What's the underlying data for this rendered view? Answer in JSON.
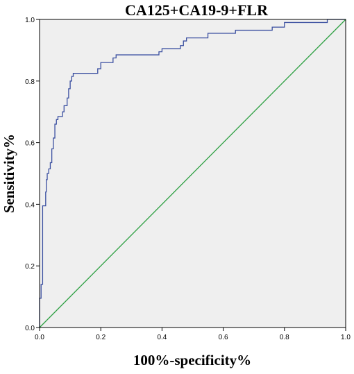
{
  "chart_data": {
    "type": "line",
    "title": "CA125+CA19-9+FLR",
    "xlabel": "100%-specificity%",
    "ylabel": "Sensitivity%",
    "xlim": [
      0.0,
      1.0
    ],
    "ylim": [
      0.0,
      1.0
    ],
    "x_ticks": [
      "0.0",
      "0.2",
      "0.4",
      "0.6",
      "0.8",
      "1.0"
    ],
    "y_ticks": [
      "0.0",
      "0.2",
      "0.4",
      "0.6",
      "0.8",
      "1.0"
    ],
    "grid": false,
    "legend": "none",
    "colors": {
      "plot_background": "#efefef",
      "roc_curve": "#3a4fa0",
      "reference_line": "#2ea043"
    },
    "series": [
      {
        "values": [
          [
            0.0,
            0.0
          ],
          [
            0.0,
            0.095
          ],
          [
            0.005,
            0.095
          ],
          [
            0.005,
            0.14
          ],
          [
            0.01,
            0.14
          ],
          [
            0.01,
            0.395
          ],
          [
            0.02,
            0.395
          ],
          [
            0.02,
            0.44
          ],
          [
            0.022,
            0.44
          ],
          [
            0.022,
            0.48
          ],
          [
            0.025,
            0.48
          ],
          [
            0.025,
            0.5
          ],
          [
            0.03,
            0.5
          ],
          [
            0.03,
            0.515
          ],
          [
            0.035,
            0.515
          ],
          [
            0.035,
            0.535
          ],
          [
            0.04,
            0.535
          ],
          [
            0.04,
            0.58
          ],
          [
            0.045,
            0.58
          ],
          [
            0.045,
            0.615
          ],
          [
            0.05,
            0.615
          ],
          [
            0.05,
            0.66
          ],
          [
            0.055,
            0.66
          ],
          [
            0.055,
            0.675
          ],
          [
            0.06,
            0.675
          ],
          [
            0.06,
            0.685
          ],
          [
            0.075,
            0.685
          ],
          [
            0.075,
            0.7
          ],
          [
            0.08,
            0.7
          ],
          [
            0.08,
            0.72
          ],
          [
            0.09,
            0.72
          ],
          [
            0.09,
            0.745
          ],
          [
            0.095,
            0.745
          ],
          [
            0.095,
            0.775
          ],
          [
            0.1,
            0.775
          ],
          [
            0.1,
            0.8
          ],
          [
            0.105,
            0.8
          ],
          [
            0.105,
            0.815
          ],
          [
            0.11,
            0.815
          ],
          [
            0.11,
            0.825
          ],
          [
            0.19,
            0.825
          ],
          [
            0.19,
            0.84
          ],
          [
            0.2,
            0.84
          ],
          [
            0.2,
            0.86
          ],
          [
            0.24,
            0.86
          ],
          [
            0.24,
            0.875
          ],
          [
            0.25,
            0.875
          ],
          [
            0.25,
            0.885
          ],
          [
            0.39,
            0.885
          ],
          [
            0.39,
            0.895
          ],
          [
            0.4,
            0.895
          ],
          [
            0.4,
            0.905
          ],
          [
            0.46,
            0.905
          ],
          [
            0.46,
            0.915
          ],
          [
            0.47,
            0.915
          ],
          [
            0.47,
            0.93
          ],
          [
            0.48,
            0.93
          ],
          [
            0.48,
            0.94
          ],
          [
            0.55,
            0.94
          ],
          [
            0.55,
            0.955
          ],
          [
            0.64,
            0.955
          ],
          [
            0.64,
            0.965
          ],
          [
            0.76,
            0.965
          ],
          [
            0.76,
            0.975
          ],
          [
            0.8,
            0.975
          ],
          [
            0.8,
            0.99
          ],
          [
            0.94,
            0.99
          ],
          [
            0.94,
            1.0
          ],
          [
            1.0,
            1.0
          ]
        ]
      },
      {
        "values": [
          [
            0.0,
            0.0
          ],
          [
            1.0,
            1.0
          ]
        ]
      }
    ]
  }
}
